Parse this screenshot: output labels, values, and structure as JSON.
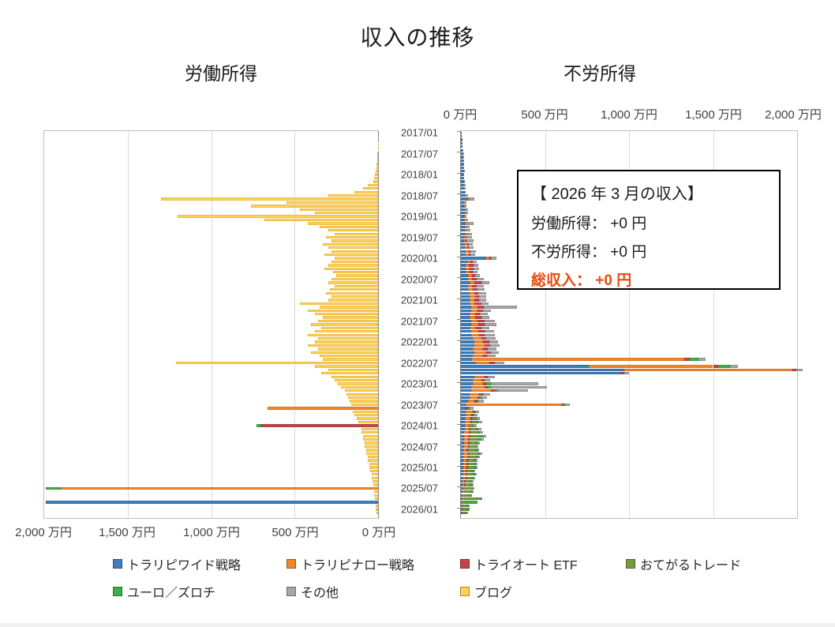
{
  "title": "収入の推移",
  "subtitles": {
    "labor": "労働所得",
    "passive": "不労所得"
  },
  "axis": {
    "top_labels": [
      "0 万円",
      "500 万円",
      "1,000 万円",
      "1,500 万円",
      "2,000 万円"
    ],
    "bottom_labels": [
      "2,000 万円",
      "1,500 万円",
      "1,000 万円",
      "500 万円",
      "0 万円"
    ]
  },
  "annotation": {
    "title": "【 2026 年 3 月の収入】",
    "labor_line": "労働所得： +0 円",
    "passive_line": "不労所得： +0 円",
    "total_line": "総収入： +0 円",
    "total_color": "#E8490F"
  },
  "legend": [
    {
      "label": "トラリピワイド戦略",
      "color": "#3D7EBC"
    },
    {
      "label": "トラリピナロー戦略",
      "color": "#F0862B"
    },
    {
      "label": "トライオート ETF",
      "color": "#C3444A"
    },
    {
      "label": "おてがるトレード",
      "color": "#7A9A3F"
    },
    {
      "label": "ユーロ／ズロチ",
      "color": "#3FAE49"
    },
    {
      "label": "その他",
      "color": "#A6A6A6"
    },
    {
      "label": "ブログ",
      "color": "#FFD34F"
    }
  ],
  "chart_data": {
    "type": "bar",
    "subtype": "horizontal-butterfly-stacked",
    "unit": "万円",
    "x_max_man": 2000,
    "axis_step_man": 500,
    "months_count": 111,
    "start_month": "2017/01",
    "end_month": "2026/03",
    "tick_labels": [
      "2017/01",
      "2017/07",
      "2018/01",
      "2018/07",
      "2019/01",
      "2019/07",
      "2020/01",
      "2020/07",
      "2021/01",
      "2021/07",
      "2022/01",
      "2022/07",
      "2023/01",
      "2023/07",
      "2024/01",
      "2024/07",
      "2025/01",
      "2025/07",
      "2026/01"
    ],
    "labor_series": {
      "name": "ブログ",
      "color": "#FFD34F",
      "border": "#D9A441",
      "values": [
        0,
        0,
        0,
        1,
        1,
        2,
        3,
        4,
        5,
        8,
        10,
        15,
        20,
        25,
        30,
        60,
        90,
        140,
        300,
        1300,
        550,
        760,
        470,
        380,
        1200,
        680,
        420,
        350,
        300,
        260,
        310,
        280,
        330,
        300,
        280,
        320,
        260,
        280,
        300,
        320,
        270,
        250,
        280,
        300,
        260,
        290,
        310,
        280,
        300,
        470,
        350,
        420,
        380,
        330,
        360,
        400,
        340,
        380,
        420,
        360,
        380,
        420,
        360,
        400,
        350,
        330,
        1210,
        380,
        300,
        340,
        280,
        260,
        240,
        220,
        200,
        190,
        180,
        170,
        160,
        150,
        150,
        140,
        130,
        120,
        110,
        100,
        100,
        90,
        90,
        80,
        80,
        70,
        70,
        60,
        60,
        50,
        50,
        45,
        40,
        40,
        35,
        30,
        30,
        25,
        25,
        20,
        20,
        15,
        15,
        10,
        0
      ]
    },
    "passive_series": [
      {
        "name": "トラリピワイド戦略",
        "color": "#3D7EBC",
        "border": "#2E5F93",
        "values": [
          5,
          5,
          8,
          8,
          10,
          10,
          12,
          12,
          15,
          15,
          15,
          18,
          15,
          15,
          18,
          20,
          20,
          22,
          25,
          40,
          20,
          20,
          25,
          25,
          20,
          20,
          25,
          25,
          25,
          30,
          20,
          20,
          25,
          25,
          30,
          30,
          150,
          40,
          30,
          30,
          30,
          40,
          40,
          50,
          40,
          40,
          50,
          50,
          50,
          50,
          60,
          60,
          50,
          50,
          60,
          60,
          50,
          60,
          60,
          70,
          80,
          80,
          70,
          80,
          70,
          60,
          90,
          760,
          970,
          950,
          80,
          70,
          70,
          60,
          60,
          50,
          50,
          40,
          30,
          30,
          30,
          30,
          25,
          25,
          25,
          25,
          20,
          20,
          20,
          20,
          20,
          15,
          15,
          15,
          15,
          15,
          15,
          15,
          15,
          15,
          10,
          10,
          10,
          10,
          10,
          10,
          -1990,
          10,
          10,
          10,
          0
        ]
      },
      {
        "name": "トラリピナロー戦略",
        "color": "#F0862B",
        "border": "#C96A1C",
        "values": [
          0,
          0,
          0,
          0,
          0,
          0,
          0,
          0,
          0,
          0,
          0,
          0,
          0,
          0,
          0,
          0,
          0,
          0,
          5,
          10,
          5,
          5,
          5,
          8,
          5,
          5,
          8,
          8,
          10,
          10,
          10,
          10,
          12,
          12,
          15,
          15,
          20,
          15,
          15,
          20,
          20,
          25,
          25,
          30,
          25,
          30,
          30,
          35,
          30,
          30,
          40,
          40,
          35,
          35,
          40,
          45,
          40,
          45,
          50,
          50,
          50,
          60,
          60,
          70,
          60,
          1270,
          80,
          740,
          1000,
          0,
          60,
          50,
          60,
          80,
          120,
          60,
          50,
          40,
          570,
          -660,
          40,
          30,
          30,
          30,
          20,
          20,
          25,
          25,
          20,
          20,
          20,
          20,
          25,
          25,
          20,
          20,
          20,
          15,
          15,
          15,
          10,
          10,
          -1900,
          10,
          10,
          10,
          5,
          5,
          5,
          5,
          0
        ]
      },
      {
        "name": "トライオート ETF",
        "color": "#C3444A",
        "border": "#93333A",
        "values": [
          0,
          0,
          0,
          0,
          0,
          0,
          0,
          0,
          0,
          0,
          0,
          0,
          0,
          0,
          0,
          0,
          0,
          0,
          0,
          0,
          0,
          0,
          0,
          0,
          0,
          0,
          0,
          0,
          0,
          0,
          5,
          5,
          8,
          8,
          10,
          10,
          10,
          15,
          30,
          25,
          20,
          20,
          30,
          40,
          30,
          30,
          25,
          25,
          30,
          40,
          35,
          30,
          30,
          35,
          40,
          35,
          30,
          35,
          30,
          30,
          40,
          35,
          30,
          30,
          25,
          25,
          30,
          30,
          25,
          20,
          20,
          20,
          20,
          20,
          20,
          15,
          15,
          15,
          10,
          10,
          10,
          10,
          10,
          10,
          -700,
          10,
          10,
          10,
          10,
          10,
          5,
          5,
          5,
          5,
          5,
          5,
          5,
          5,
          5,
          5,
          5,
          5,
          0,
          0,
          0,
          0,
          0,
          0,
          0,
          0,
          0
        ]
      },
      {
        "name": "おてがるトレード",
        "color": "#7A9A3F",
        "border": "#5C742F",
        "values": [
          0,
          0,
          0,
          0,
          0,
          0,
          0,
          0,
          0,
          0,
          0,
          0,
          0,
          0,
          0,
          0,
          0,
          0,
          0,
          0,
          0,
          0,
          0,
          0,
          0,
          0,
          0,
          0,
          0,
          0,
          0,
          0,
          0,
          0,
          0,
          0,
          0,
          0,
          0,
          0,
          0,
          0,
          0,
          0,
          0,
          0,
          0,
          0,
          0,
          0,
          0,
          0,
          0,
          0,
          0,
          0,
          0,
          0,
          0,
          0,
          0,
          0,
          0,
          0,
          0,
          0,
          0,
          0,
          0,
          0,
          0,
          0,
          0,
          0,
          0,
          0,
          0,
          0,
          0,
          0,
          0,
          0,
          20,
          30,
          30,
          40,
          50,
          60,
          50,
          40,
          40,
          50,
          60,
          50,
          40,
          40,
          40,
          30,
          40,
          30,
          30,
          30,
          60,
          40,
          30,
          80,
          30,
          20,
          20,
          15,
          0
        ]
      },
      {
        "name": "ユーロ／ズロチ",
        "color": "#3FAE49",
        "border": "#2F8437",
        "values": [
          0,
          0,
          0,
          0,
          0,
          0,
          0,
          0,
          0,
          0,
          0,
          0,
          0,
          0,
          0,
          0,
          0,
          0,
          0,
          0,
          0,
          0,
          0,
          0,
          0,
          0,
          0,
          0,
          0,
          0,
          0,
          0,
          0,
          0,
          0,
          0,
          0,
          0,
          0,
          0,
          0,
          0,
          0,
          0,
          0,
          0,
          0,
          0,
          0,
          0,
          0,
          0,
          0,
          0,
          0,
          0,
          0,
          0,
          0,
          0,
          0,
          0,
          0,
          0,
          0,
          60,
          0,
          70,
          0,
          0,
          0,
          0,
          30,
          20,
          20,
          10,
          10,
          10,
          10,
          10,
          10,
          10,
          10,
          10,
          -30,
          10,
          10,
          20,
          20,
          10,
          10,
          10,
          10,
          10,
          10,
          10,
          10,
          10,
          10,
          10,
          10,
          10,
          -90,
          10,
          10,
          20,
          60,
          10,
          10,
          5,
          0
        ]
      },
      {
        "name": "その他",
        "color": "#A6A6A6",
        "border": "#7F7F7F",
        "values": [
          0,
          0,
          0,
          0,
          0,
          3,
          3,
          3,
          5,
          5,
          5,
          5,
          5,
          5,
          5,
          8,
          8,
          8,
          10,
          30,
          10,
          10,
          10,
          10,
          10,
          15,
          40,
          20,
          20,
          25,
          30,
          40,
          25,
          30,
          35,
          30,
          30,
          25,
          30,
          35,
          30,
          30,
          40,
          50,
          40,
          40,
          45,
          40,
          40,
          45,
          200,
          50,
          45,
          50,
          60,
          70,
          50,
          55,
          60,
          55,
          50,
          55,
          50,
          45,
          50,
          40,
          60,
          50,
          40,
          30,
          40,
          35,
          280,
          330,
          180,
          40,
          30,
          30,
          30,
          25,
          20,
          20,
          20,
          20,
          20,
          15,
          15,
          15,
          15,
          15,
          10,
          10,
          10,
          10,
          10,
          10,
          10,
          10,
          10,
          10,
          10,
          10,
          10,
          5,
          5,
          5,
          5,
          5,
          5,
          5,
          0
        ]
      }
    ]
  }
}
